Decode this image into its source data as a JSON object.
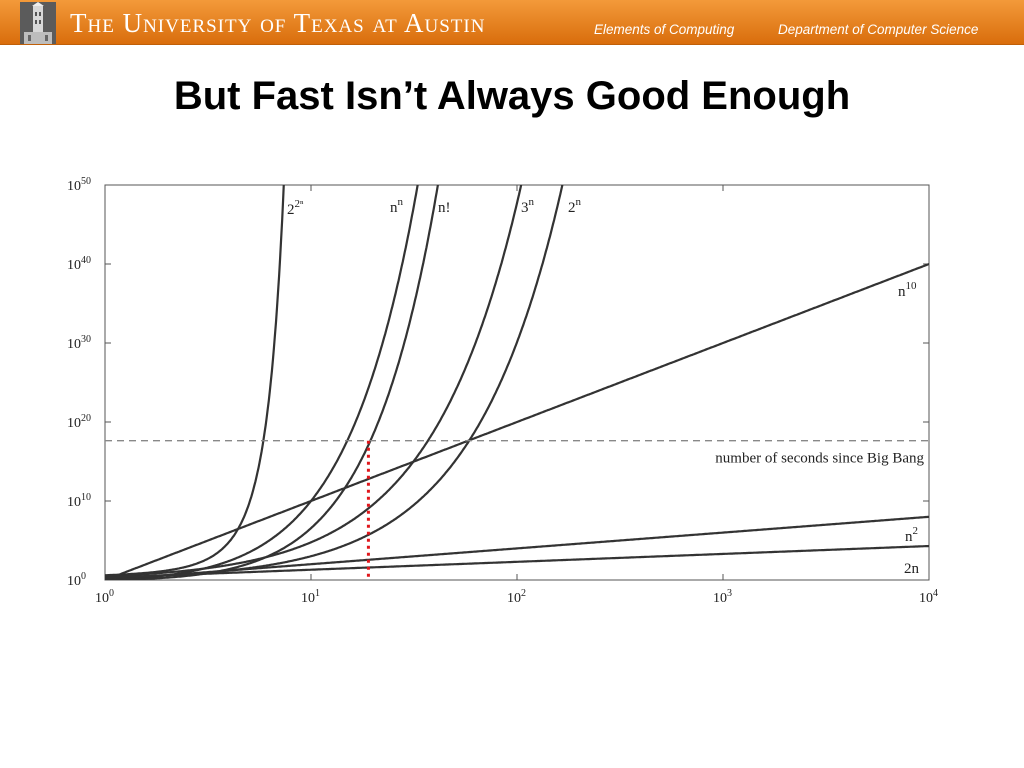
{
  "header": {
    "university": "The University of Texas at Austin",
    "course": "Elements of Computing",
    "department": "Department of Computer Science"
  },
  "slide": {
    "title": "But Fast Isn’t Always Good Enough"
  },
  "chart_data": {
    "type": "line",
    "title": "",
    "xlabel": "",
    "ylabel": "",
    "x_scale": "log",
    "y_scale": "log",
    "xlim": [
      1,
      10000
    ],
    "ylim": [
      1,
      1e+50
    ],
    "grid": false,
    "x_ticks": [
      {
        "value": 1,
        "base": "10",
        "exp": "0"
      },
      {
        "value": 10,
        "base": "10",
        "exp": "1"
      },
      {
        "value": 100,
        "base": "10",
        "exp": "2"
      },
      {
        "value": 1000,
        "base": "10",
        "exp": "3"
      },
      {
        "value": 10000,
        "base": "10",
        "exp": "4"
      }
    ],
    "y_ticks": [
      {
        "value": 1,
        "base": "10",
        "exp": "0"
      },
      {
        "value": 10000000000.0,
        "base": "10",
        "exp": "10"
      },
      {
        "value": 1e+20,
        "base": "10",
        "exp": "20"
      },
      {
        "value": 1e+30,
        "base": "10",
        "exp": "30"
      },
      {
        "value": 1e+40,
        "base": "10",
        "exp": "40"
      },
      {
        "value": 1e+50,
        "base": "10",
        "exp": "50"
      }
    ],
    "series": [
      {
        "key": "double_exp",
        "label_base": "2",
        "label_exp": "2ⁿ",
        "kind": "double_exp"
      },
      {
        "key": "n_pow_n",
        "label_base": "n",
        "label_exp": "n",
        "kind": "n_pow_n"
      },
      {
        "key": "factorial",
        "label_base": "n!",
        "label_exp": "",
        "kind": "factorial"
      },
      {
        "key": "three_pow_n",
        "label_base": "3",
        "label_exp": "n",
        "kind": "exp",
        "base": 3
      },
      {
        "key": "two_pow_n",
        "label_base": "2",
        "label_exp": "n",
        "kind": "exp",
        "base": 2
      },
      {
        "key": "n_pow_10",
        "label_base": "n",
        "label_exp": "10",
        "kind": "power",
        "exponent": 10
      },
      {
        "key": "n_squared",
        "label_base": "n",
        "label_exp": "2",
        "kind": "power",
        "exponent": 2
      },
      {
        "key": "two_n",
        "label_base": "2n",
        "label_exp": "",
        "kind": "linear",
        "factor": 2
      }
    ],
    "reference_line": {
      "label": "number of seconds since Big Bang",
      "y": 4.3e+17
    },
    "marker_line": {
      "x": 19,
      "color": "#e0161b"
    }
  }
}
